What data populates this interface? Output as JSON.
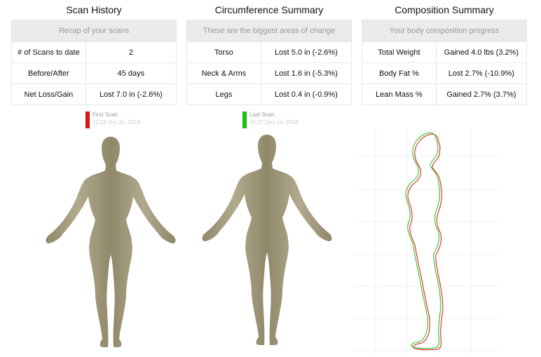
{
  "panels": [
    {
      "title": "Scan History",
      "subtitle": "Recap of your scans",
      "rows": [
        [
          "# of Scans to date",
          "2"
        ],
        [
          "Before/After",
          "45 days"
        ],
        [
          "Net Loss/Gain",
          "Lost 7.0 in (-2.6%)"
        ]
      ]
    },
    {
      "title": "Circumference  Summary",
      "subtitle": "These are the biggest areas of change",
      "rows": [
        [
          "Torso",
          "Lost 5.0 in (-2.6%)"
        ],
        [
          "Neck & Arms",
          "Lost 1.6 in (-5.3%)"
        ],
        [
          "Legs",
          "Lost 0.4 in (-0.9%)"
        ]
      ]
    },
    {
      "title": "Composition  Summary",
      "subtitle": "Your body composition progress",
      "rows": [
        [
          "Total Weight",
          "Gained 4.0 lbs (3.2%)"
        ],
        [
          "Body Fat %",
          "Lost 2.7% (-10.9%)"
        ],
        [
          "Lean Mass %",
          "Gained 2.7% (3.7%)"
        ]
      ]
    }
  ],
  "scans": [
    {
      "label": "First Scan",
      "date": "12:18 Oct 30, 2018",
      "color": "#e31010"
    },
    {
      "label": "Last Scan",
      "date": "10:27 Dec 14, 2018",
      "color": "#18c018"
    }
  ],
  "body_color": "#a9a184"
}
